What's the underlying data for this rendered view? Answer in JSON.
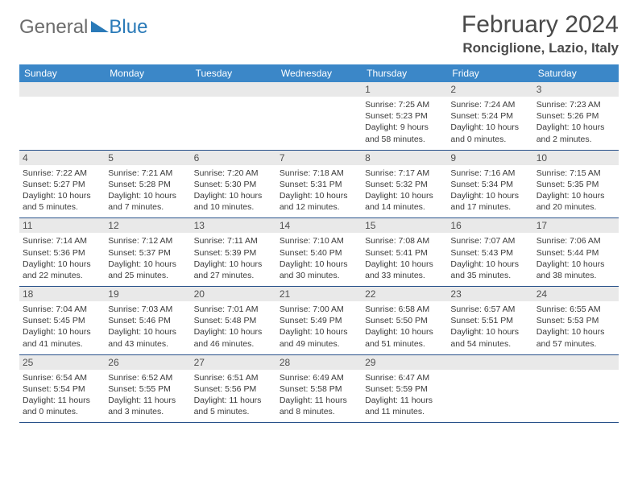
{
  "logo": {
    "part1": "General",
    "part2": "Blue"
  },
  "title": "February 2024",
  "subtitle": "Ronciglione, Lazio, Italy",
  "colors": {
    "header_bg": "#3b87c8",
    "header_fg": "#ffffff",
    "daynum_bg": "#e9e9e9",
    "border": "#28518a",
    "logo_gray": "#6c6c6c",
    "logo_blue": "#2a7ab8"
  },
  "weekdays": [
    "Sunday",
    "Monday",
    "Tuesday",
    "Wednesday",
    "Thursday",
    "Friday",
    "Saturday"
  ],
  "weeks": [
    [
      null,
      null,
      null,
      null,
      {
        "n": "1",
        "sr": "Sunrise: 7:25 AM",
        "ss": "Sunset: 5:23 PM",
        "d1": "Daylight: 9 hours",
        "d2": "and 58 minutes."
      },
      {
        "n": "2",
        "sr": "Sunrise: 7:24 AM",
        "ss": "Sunset: 5:24 PM",
        "d1": "Daylight: 10 hours",
        "d2": "and 0 minutes."
      },
      {
        "n": "3",
        "sr": "Sunrise: 7:23 AM",
        "ss": "Sunset: 5:26 PM",
        "d1": "Daylight: 10 hours",
        "d2": "and 2 minutes."
      }
    ],
    [
      {
        "n": "4",
        "sr": "Sunrise: 7:22 AM",
        "ss": "Sunset: 5:27 PM",
        "d1": "Daylight: 10 hours",
        "d2": "and 5 minutes."
      },
      {
        "n": "5",
        "sr": "Sunrise: 7:21 AM",
        "ss": "Sunset: 5:28 PM",
        "d1": "Daylight: 10 hours",
        "d2": "and 7 minutes."
      },
      {
        "n": "6",
        "sr": "Sunrise: 7:20 AM",
        "ss": "Sunset: 5:30 PM",
        "d1": "Daylight: 10 hours",
        "d2": "and 10 minutes."
      },
      {
        "n": "7",
        "sr": "Sunrise: 7:18 AM",
        "ss": "Sunset: 5:31 PM",
        "d1": "Daylight: 10 hours",
        "d2": "and 12 minutes."
      },
      {
        "n": "8",
        "sr": "Sunrise: 7:17 AM",
        "ss": "Sunset: 5:32 PM",
        "d1": "Daylight: 10 hours",
        "d2": "and 14 minutes."
      },
      {
        "n": "9",
        "sr": "Sunrise: 7:16 AM",
        "ss": "Sunset: 5:34 PM",
        "d1": "Daylight: 10 hours",
        "d2": "and 17 minutes."
      },
      {
        "n": "10",
        "sr": "Sunrise: 7:15 AM",
        "ss": "Sunset: 5:35 PM",
        "d1": "Daylight: 10 hours",
        "d2": "and 20 minutes."
      }
    ],
    [
      {
        "n": "11",
        "sr": "Sunrise: 7:14 AM",
        "ss": "Sunset: 5:36 PM",
        "d1": "Daylight: 10 hours",
        "d2": "and 22 minutes."
      },
      {
        "n": "12",
        "sr": "Sunrise: 7:12 AM",
        "ss": "Sunset: 5:37 PM",
        "d1": "Daylight: 10 hours",
        "d2": "and 25 minutes."
      },
      {
        "n": "13",
        "sr": "Sunrise: 7:11 AM",
        "ss": "Sunset: 5:39 PM",
        "d1": "Daylight: 10 hours",
        "d2": "and 27 minutes."
      },
      {
        "n": "14",
        "sr": "Sunrise: 7:10 AM",
        "ss": "Sunset: 5:40 PM",
        "d1": "Daylight: 10 hours",
        "d2": "and 30 minutes."
      },
      {
        "n": "15",
        "sr": "Sunrise: 7:08 AM",
        "ss": "Sunset: 5:41 PM",
        "d1": "Daylight: 10 hours",
        "d2": "and 33 minutes."
      },
      {
        "n": "16",
        "sr": "Sunrise: 7:07 AM",
        "ss": "Sunset: 5:43 PM",
        "d1": "Daylight: 10 hours",
        "d2": "and 35 minutes."
      },
      {
        "n": "17",
        "sr": "Sunrise: 7:06 AM",
        "ss": "Sunset: 5:44 PM",
        "d1": "Daylight: 10 hours",
        "d2": "and 38 minutes."
      }
    ],
    [
      {
        "n": "18",
        "sr": "Sunrise: 7:04 AM",
        "ss": "Sunset: 5:45 PM",
        "d1": "Daylight: 10 hours",
        "d2": "and 41 minutes."
      },
      {
        "n": "19",
        "sr": "Sunrise: 7:03 AM",
        "ss": "Sunset: 5:46 PM",
        "d1": "Daylight: 10 hours",
        "d2": "and 43 minutes."
      },
      {
        "n": "20",
        "sr": "Sunrise: 7:01 AM",
        "ss": "Sunset: 5:48 PM",
        "d1": "Daylight: 10 hours",
        "d2": "and 46 minutes."
      },
      {
        "n": "21",
        "sr": "Sunrise: 7:00 AM",
        "ss": "Sunset: 5:49 PM",
        "d1": "Daylight: 10 hours",
        "d2": "and 49 minutes."
      },
      {
        "n": "22",
        "sr": "Sunrise: 6:58 AM",
        "ss": "Sunset: 5:50 PM",
        "d1": "Daylight: 10 hours",
        "d2": "and 51 minutes."
      },
      {
        "n": "23",
        "sr": "Sunrise: 6:57 AM",
        "ss": "Sunset: 5:51 PM",
        "d1": "Daylight: 10 hours",
        "d2": "and 54 minutes."
      },
      {
        "n": "24",
        "sr": "Sunrise: 6:55 AM",
        "ss": "Sunset: 5:53 PM",
        "d1": "Daylight: 10 hours",
        "d2": "and 57 minutes."
      }
    ],
    [
      {
        "n": "25",
        "sr": "Sunrise: 6:54 AM",
        "ss": "Sunset: 5:54 PM",
        "d1": "Daylight: 11 hours",
        "d2": "and 0 minutes."
      },
      {
        "n": "26",
        "sr": "Sunrise: 6:52 AM",
        "ss": "Sunset: 5:55 PM",
        "d1": "Daylight: 11 hours",
        "d2": "and 3 minutes."
      },
      {
        "n": "27",
        "sr": "Sunrise: 6:51 AM",
        "ss": "Sunset: 5:56 PM",
        "d1": "Daylight: 11 hours",
        "d2": "and 5 minutes."
      },
      {
        "n": "28",
        "sr": "Sunrise: 6:49 AM",
        "ss": "Sunset: 5:58 PM",
        "d1": "Daylight: 11 hours",
        "d2": "and 8 minutes."
      },
      {
        "n": "29",
        "sr": "Sunrise: 6:47 AM",
        "ss": "Sunset: 5:59 PM",
        "d1": "Daylight: 11 hours",
        "d2": "and 11 minutes."
      },
      null,
      null
    ]
  ]
}
